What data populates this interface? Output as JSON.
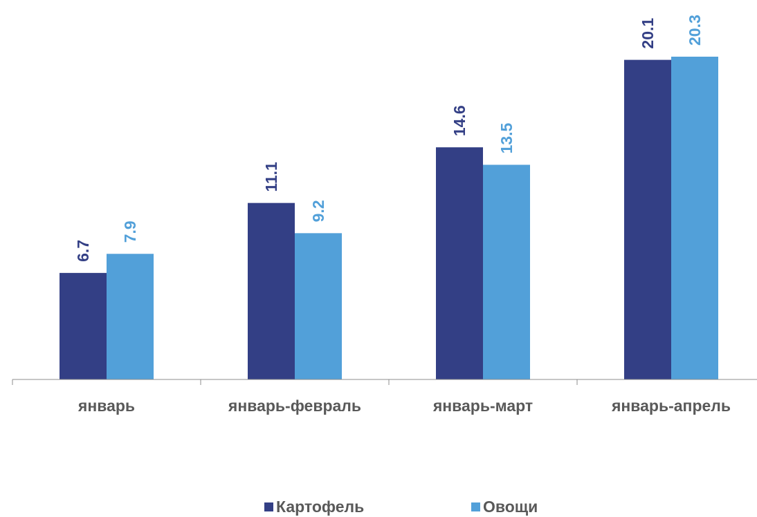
{
  "chart_data": {
    "type": "bar",
    "categories": [
      "январь",
      "январь-февраль",
      "январь-март",
      "январь-апрель"
    ],
    "series": [
      {
        "name": "Картофель",
        "values": [
          6.7,
          11.1,
          14.6,
          20.1
        ],
        "color": "#333f85"
      },
      {
        "name": "Овощи",
        "values": [
          7.9,
          9.2,
          13.5,
          20.3
        ],
        "color": "#52a0d9"
      }
    ],
    "ylim": [
      0,
      20.3
    ],
    "grid": false,
    "legend_position": "bottom",
    "axis_color": "#8c8c8c",
    "category_label_color": "#595959"
  }
}
